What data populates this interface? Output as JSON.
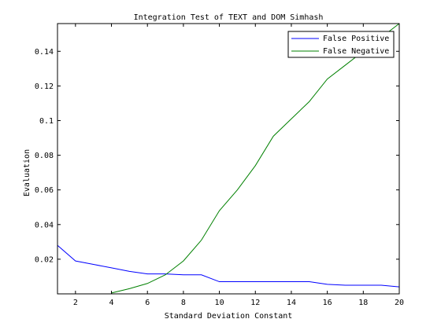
{
  "chart_data": {
    "type": "line",
    "title": "Integration Test of TEXT and DOM Simhash",
    "xlabel": "Standard Deviation Constant",
    "ylabel": "Evaluation",
    "xlim": [
      1,
      20
    ],
    "ylim": [
      0,
      0.156
    ],
    "xticks": [
      2,
      4,
      6,
      8,
      10,
      12,
      14,
      16,
      18,
      20
    ],
    "yticks": [
      0.02,
      0.04,
      0.06,
      0.08,
      0.1,
      0.12,
      0.14
    ],
    "ytick_labels": [
      "0.02",
      "0.04",
      "0.06",
      "0.08",
      "0.1",
      "0.12",
      "0.14"
    ],
    "grid": false,
    "legend_position": "top-right",
    "series": [
      {
        "name": "False Positive",
        "color": "#0000ff",
        "x": [
          1,
          2,
          3,
          4,
          5,
          6,
          7,
          8,
          9,
          10,
          11,
          12,
          13,
          14,
          15,
          16,
          17,
          18,
          19,
          20
        ],
        "y": [
          0.028,
          0.019,
          0.017,
          0.015,
          0.013,
          0.0115,
          0.0115,
          0.011,
          0.011,
          0.007,
          0.007,
          0.007,
          0.007,
          0.007,
          0.007,
          0.0055,
          0.005,
          0.005,
          0.005,
          0.004
        ]
      },
      {
        "name": "False Negative",
        "color": "#008000",
        "x": [
          4,
          5,
          6,
          7,
          8,
          9,
          10,
          11,
          12,
          13,
          14,
          15,
          16,
          17,
          18,
          19,
          20
        ],
        "y": [
          0.0005,
          0.003,
          0.006,
          0.011,
          0.019,
          0.031,
          0.048,
          0.06,
          0.074,
          0.091,
          0.101,
          0.111,
          0.124,
          0.132,
          0.14,
          0.148,
          0.156
        ]
      }
    ]
  }
}
